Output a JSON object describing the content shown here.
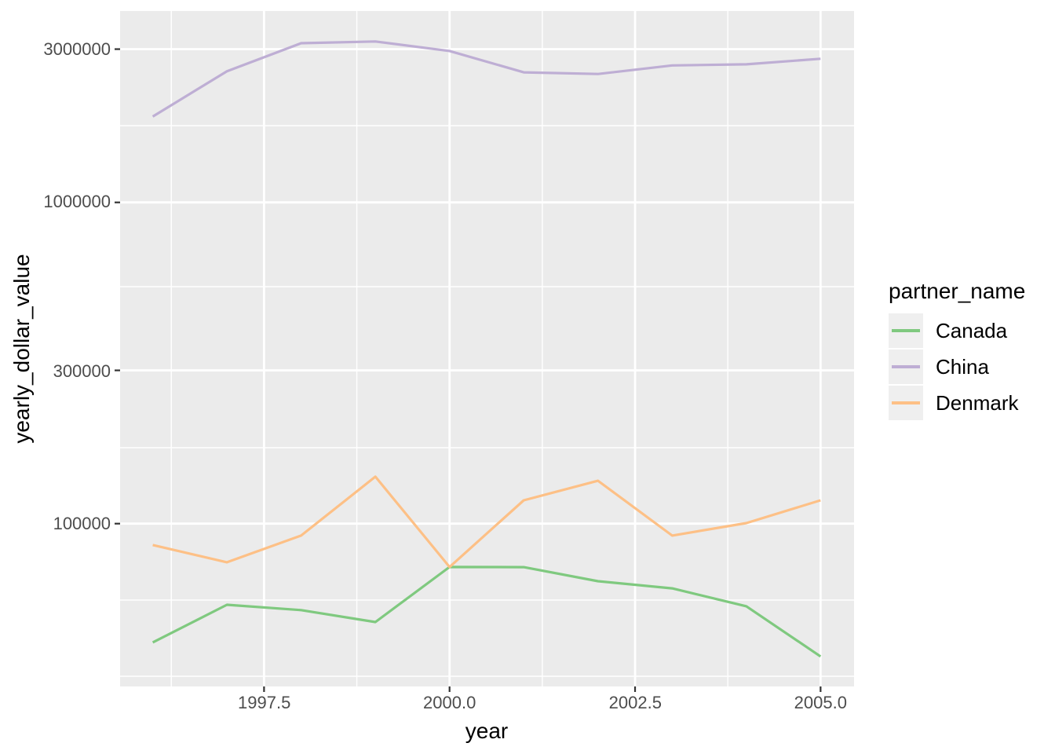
{
  "chart_data": {
    "type": "line",
    "title": "",
    "xlabel": "year",
    "ylabel": "yearly_dollar_value",
    "legend_title": "partner_name",
    "legend_position": "right",
    "grid": true,
    "panel_bg": "#ebebeb",
    "grid_color": "#ffffff",
    "tick_color": "#333333",
    "tick_label_color": "#4d4d4d",
    "x_scale": "linear",
    "y_scale": "log10",
    "x_range": [
      1995.55,
      2005.45
    ],
    "y_range": [
      31500,
      3950000
    ],
    "x": [
      1996,
      1997,
      1998,
      1999,
      2000,
      2001,
      2002,
      2003,
      2004,
      2005
    ],
    "series": [
      {
        "name": "Canada",
        "color": "#7fc97f",
        "values": [
          42700,
          55900,
          53800,
          49400,
          73300,
          73200,
          66200,
          62900,
          55300,
          38600
        ]
      },
      {
        "name": "China",
        "color": "#beaed4",
        "values": [
          1850000,
          2560000,
          3130000,
          3170000,
          2960000,
          2540000,
          2510000,
          2670000,
          2690000,
          2800000
        ]
      },
      {
        "name": "Denmark",
        "color": "#fdc086",
        "values": [
          85800,
          75800,
          91800,
          140000,
          73300,
          118200,
          136000,
          91800,
          100400,
          118200
        ]
      }
    ],
    "x_ticks": [
      {
        "label": "1997.5",
        "value": 1997.5
      },
      {
        "label": "2000.0",
        "value": 2000.0
      },
      {
        "label": "2002.5",
        "value": 2002.5
      },
      {
        "label": "2005.0",
        "value": 2005.0
      }
    ],
    "y_ticks": [
      {
        "label": "100000",
        "value": 100000
      },
      {
        "label": "300000",
        "value": 300000
      },
      {
        "label": "1000000",
        "value": 1000000
      },
      {
        "label": "3000000",
        "value": 3000000
      }
    ],
    "x_minor_ticks": [
      1996.25,
      1998.75,
      2001.25,
      2003.75
    ]
  }
}
